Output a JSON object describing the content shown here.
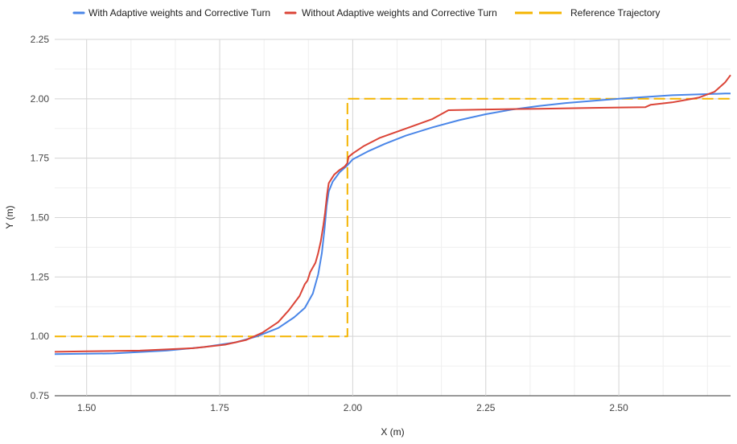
{
  "chart_data": {
    "type": "line",
    "title": "",
    "xlabel": "X (m)",
    "ylabel": "Y (m)",
    "xlim": [
      1.44,
      2.71
    ],
    "ylim": [
      0.75,
      2.25
    ],
    "x_ticks": [
      1.5,
      1.75,
      2.0,
      2.25,
      2.5
    ],
    "x_tick_labels": [
      "1.50",
      "1.75",
      "2.00",
      "2.25",
      "2.50"
    ],
    "y_ticks": [
      0.75,
      1.0,
      1.25,
      1.5,
      1.75,
      2.0,
      2.25
    ],
    "y_tick_labels": [
      "0.75",
      "1.00",
      "1.25",
      "1.50",
      "1.75",
      "2.00",
      "2.25"
    ],
    "grid": true,
    "legend_position": "top",
    "series": [
      {
        "name": "With Adaptive weights and Corrective Turn",
        "color": "#4a86e8",
        "dash": "solid",
        "points": [
          [
            1.44,
            0.925
          ],
          [
            1.55,
            0.928
          ],
          [
            1.65,
            0.94
          ],
          [
            1.72,
            0.955
          ],
          [
            1.78,
            0.975
          ],
          [
            1.82,
            1.0
          ],
          [
            1.86,
            1.035
          ],
          [
            1.89,
            1.08
          ],
          [
            1.91,
            1.12
          ],
          [
            1.925,
            1.18
          ],
          [
            1.935,
            1.26
          ],
          [
            1.942,
            1.35
          ],
          [
            1.947,
            1.45
          ],
          [
            1.951,
            1.55
          ],
          [
            1.955,
            1.61
          ],
          [
            1.962,
            1.65
          ],
          [
            1.975,
            1.69
          ],
          [
            1.99,
            1.72
          ],
          [
            2.0,
            1.745
          ],
          [
            2.03,
            1.78
          ],
          [
            2.06,
            1.81
          ],
          [
            2.1,
            1.845
          ],
          [
            2.15,
            1.88
          ],
          [
            2.2,
            1.91
          ],
          [
            2.25,
            1.935
          ],
          [
            2.3,
            1.955
          ],
          [
            2.35,
            1.97
          ],
          [
            2.4,
            1.982
          ],
          [
            2.5,
            2.0
          ],
          [
            2.6,
            2.015
          ],
          [
            2.7,
            2.022
          ],
          [
            2.71,
            2.022
          ]
        ]
      },
      {
        "name": "Without Adaptive weights and Corrective Turn",
        "color": "#db4437",
        "dash": "solid",
        "points": [
          [
            1.44,
            0.935
          ],
          [
            1.5,
            0.937
          ],
          [
            1.6,
            0.94
          ],
          [
            1.7,
            0.95
          ],
          [
            1.76,
            0.965
          ],
          [
            1.8,
            0.985
          ],
          [
            1.83,
            1.015
          ],
          [
            1.86,
            1.06
          ],
          [
            1.88,
            1.11
          ],
          [
            1.9,
            1.17
          ],
          [
            1.91,
            1.22
          ],
          [
            1.915,
            1.235
          ],
          [
            1.92,
            1.27
          ],
          [
            1.93,
            1.31
          ],
          [
            1.935,
            1.35
          ],
          [
            1.94,
            1.4
          ],
          [
            1.945,
            1.47
          ],
          [
            1.948,
            1.52
          ],
          [
            1.952,
            1.6
          ],
          [
            1.955,
            1.645
          ],
          [
            1.965,
            1.68
          ],
          [
            1.975,
            1.7
          ],
          [
            1.985,
            1.715
          ],
          [
            1.99,
            1.73
          ],
          [
            1.992,
            1.755
          ],
          [
            2.0,
            1.77
          ],
          [
            2.02,
            1.8
          ],
          [
            2.05,
            1.835
          ],
          [
            2.1,
            1.875
          ],
          [
            2.15,
            1.915
          ],
          [
            2.18,
            1.952
          ],
          [
            2.25,
            1.955
          ],
          [
            2.35,
            1.958
          ],
          [
            2.45,
            1.962
          ],
          [
            2.55,
            1.965
          ],
          [
            2.56,
            1.975
          ],
          [
            2.6,
            1.985
          ],
          [
            2.65,
            2.005
          ],
          [
            2.68,
            2.03
          ],
          [
            2.7,
            2.07
          ],
          [
            2.71,
            2.1
          ]
        ]
      },
      {
        "name": "Reference Trajectory",
        "color": "#f4b400",
        "dash": "dashed",
        "points": [
          [
            1.44,
            1.0
          ],
          [
            1.99,
            1.0
          ],
          [
            1.99,
            2.0
          ],
          [
            2.71,
            2.0
          ]
        ]
      }
    ]
  }
}
